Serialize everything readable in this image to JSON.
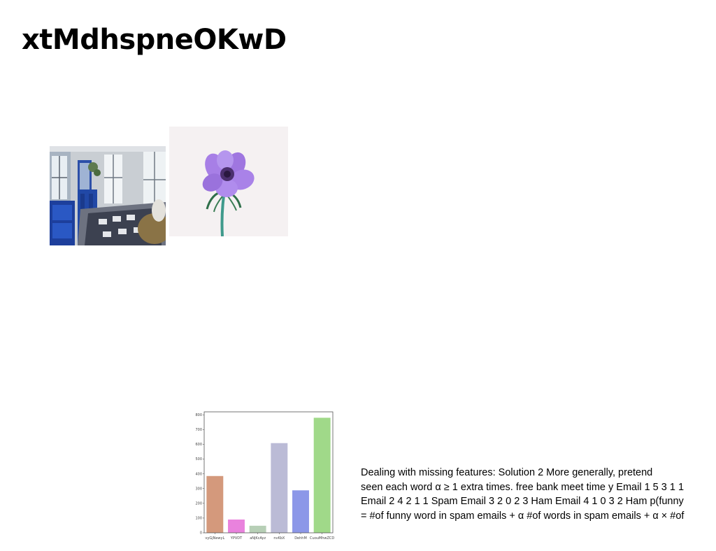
{
  "page": {
    "title": "xtMdhspneOKwD"
  },
  "images": [
    {
      "name": "bedroom-photo",
      "alt": "bedroom"
    },
    {
      "name": "flower-photo",
      "alt": "purple anemone flower"
    }
  ],
  "chart_data": {
    "type": "bar",
    "categories": [
      "vyGjNewyL",
      "YPVDT",
      "aNjKcAyz",
      "nvKbX",
      "DehhM",
      "CuouMhwZCD"
    ],
    "values": [
      385,
      90,
      48,
      608,
      288,
      780
    ],
    "colors": [
      "#d4997c",
      "#e982dd",
      "#b7cfb6",
      "#bbbbd6",
      "#8c97e8",
      "#a0d989"
    ],
    "yticks": [
      0,
      100,
      200,
      300,
      400,
      500,
      600,
      700,
      800
    ],
    "ylim": [
      0,
      820
    ],
    "title": "",
    "xlabel": "",
    "ylabel": ""
  },
  "caption": {
    "lines": [
      "Dealing with missing features: Solution 2 More generally, pretend",
      "seen each word α ≥ 1 extra times. free bank meet time y Email 1 5 3 1 1",
      "Email 2 4 2 1 1 Spam Email 3 2 0 2 3 Ham Email 4 1 0 3 2 Ham p(funny",
      "= #of funny word in spam emails + α #of words in spam emails + α × #of"
    ]
  }
}
